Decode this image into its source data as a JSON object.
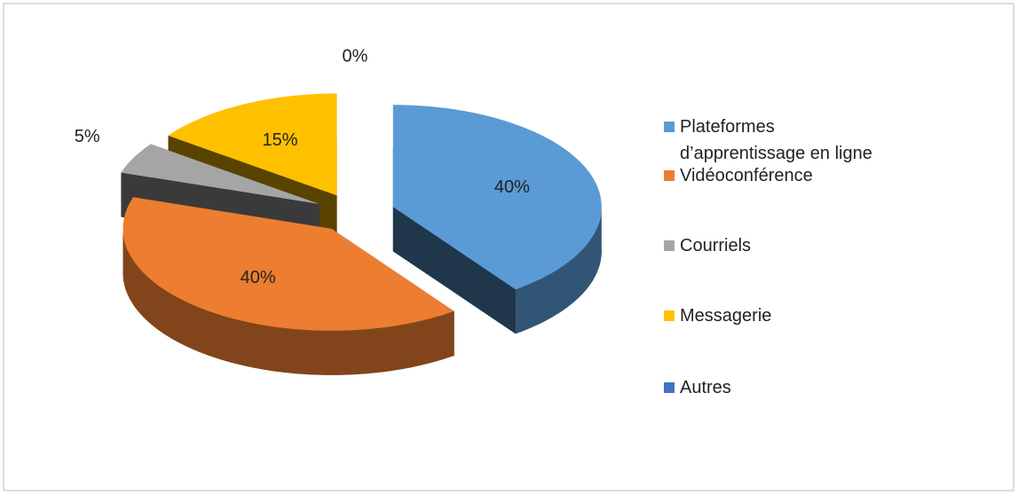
{
  "chart_data": {
    "type": "pie",
    "categories": [
      "Plateformes d’apprentissage en ligne",
      "Vidéoconférence",
      "Courriels",
      "Messagerie",
      "Autres"
    ],
    "values": [
      40,
      40,
      5,
      15,
      0
    ],
    "value_labels": [
      "40%",
      "40%",
      "5%",
      "15%",
      "0%"
    ],
    "colors": [
      "#5b9bd5",
      "#ed7d31",
      "#a5a5a5",
      "#ffc000",
      "#4472c4"
    ],
    "legend": "right"
  }
}
